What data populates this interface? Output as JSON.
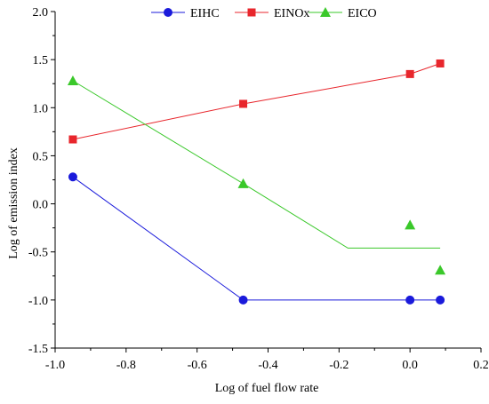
{
  "chart_data": {
    "type": "line",
    "title": "",
    "xlabel": "Log of fuel flow rate",
    "ylabel": "Log of  emission index",
    "xlim": [
      -1.0,
      0.2
    ],
    "ylim": [
      -1.5,
      2.0
    ],
    "x_ticks": [
      -1.0,
      -0.8,
      -0.6,
      -0.4,
      -0.2,
      0.0,
      0.2
    ],
    "y_ticks": [
      -1.5,
      -1.0,
      -0.5,
      0.0,
      0.5,
      1.0,
      1.5,
      2.0
    ],
    "x_tick_labels": [
      "-1.0",
      "-0.8",
      "-0.6",
      "-0.4",
      "-0.2",
      "0.0",
      "0.2"
    ],
    "y_tick_labels": [
      "-1.5",
      "-1.0",
      "-0.5",
      "0.0",
      "0.5",
      "1.0",
      "1.5",
      "2.0"
    ],
    "grid": false,
    "legend_position": "top",
    "series": [
      {
        "name": "EIHC",
        "color": "#1a1adb",
        "marker": "circle",
        "points": [
          [
            -0.95,
            0.28
          ],
          [
            -0.47,
            -1.0
          ],
          [
            0.0,
            -1.0
          ],
          [
            0.085,
            -1.0
          ]
        ],
        "line": [
          [
            -0.95,
            0.28
          ],
          [
            -0.47,
            -1.0
          ],
          [
            0.0,
            -1.0
          ],
          [
            0.085,
            -1.0
          ]
        ]
      },
      {
        "name": "EINOx",
        "color": "#e8262c",
        "marker": "square",
        "points": [
          [
            -0.95,
            0.67
          ],
          [
            -0.47,
            1.04
          ],
          [
            0.0,
            1.35
          ],
          [
            0.085,
            1.46
          ]
        ],
        "line": [
          [
            -0.95,
            0.67
          ],
          [
            -0.47,
            1.04
          ],
          [
            0.0,
            1.35
          ],
          [
            0.085,
            1.46
          ]
        ]
      },
      {
        "name": "EICO",
        "color": "#3ac82a",
        "marker": "triangle",
        "points": [
          [
            -0.95,
            1.28
          ],
          [
            -0.47,
            0.21
          ],
          [
            0.0,
            -0.22
          ],
          [
            0.085,
            -0.69
          ]
        ],
        "line": [
          [
            -0.95,
            1.28
          ],
          [
            -0.47,
            0.21
          ],
          [
            -0.175,
            -0.46
          ],
          [
            0.085,
            -0.46
          ]
        ]
      }
    ]
  }
}
